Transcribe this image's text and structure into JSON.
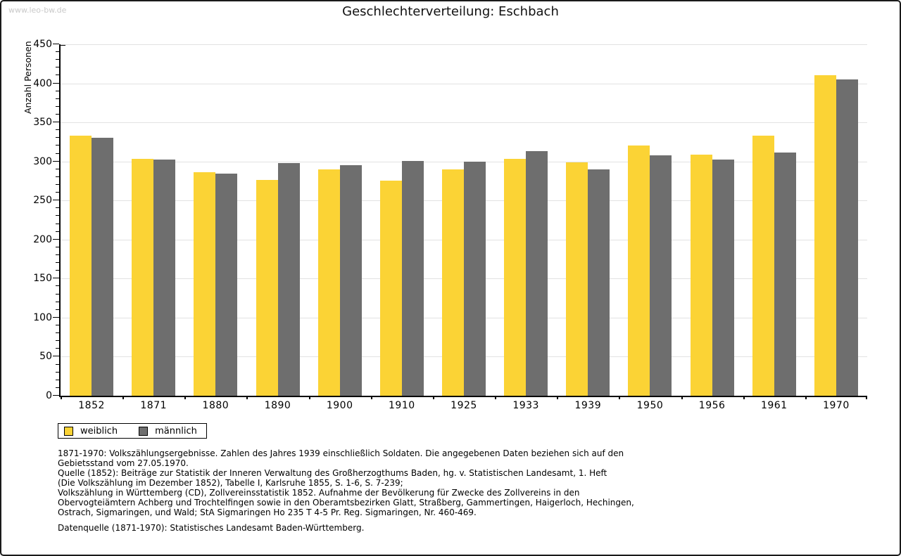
{
  "watermark": "www.leo-bw.de",
  "title": "Geschlechterverteilung: Eschbach",
  "chart_data": {
    "type": "bar",
    "title": "Geschlechterverteilung: Eschbach",
    "xlabel": "",
    "ylabel": "Anzahl Personen",
    "ylim": [
      0,
      450
    ],
    "ytick_step": 50,
    "ytick_minor_step": 10,
    "yticks": [
      0,
      50,
      100,
      150,
      200,
      250,
      300,
      350,
      400,
      450
    ],
    "grid": true,
    "gridline_color": "#e2e2e2",
    "legend_position": "bottom-left",
    "categories": [
      "1852",
      "1871",
      "1880",
      "1890",
      "1900",
      "1910",
      "1925",
      "1933",
      "1939",
      "1950",
      "1956",
      "1961",
      "1970"
    ],
    "series": [
      {
        "name": "weiblich",
        "color": "#FBD335",
        "values": [
          333,
          303,
          286,
          276,
          290,
          275,
          290,
          303,
          299,
          320,
          309,
          333,
          410
        ]
      },
      {
        "name": "männlich",
        "color": "#6E6E6E",
        "values": [
          330,
          302,
          284,
          298,
          295,
          301,
          300,
          313,
          290,
          308,
          302,
          311,
          405
        ]
      }
    ]
  },
  "footnotes": [
    "1871-1970: Volkszählungsergebnisse. Zahlen des Jahres 1939 einschließlich Soldaten. Die angegebenen Daten beziehen sich auf den",
    "Gebietsstand vom 27.05.1970.",
    "Quelle (1852): Beiträge zur Statistik der Inneren Verwaltung des Großherzogthums Baden, hg. v. Statistischen Landesamt, 1. Heft",
    "(Die Volkszählung im Dezember 1852), Tabelle I, Karlsruhe 1855, S. 1-6, S. 7-239;",
    "Volkszählung in Württemberg (CD), Zollvereinsstatistik 1852. Aufnahme der Bevölkerung für Zwecke des Zollvereins in den",
    "Obervogteiämtern Achberg und Trochtelfingen sowie in den Oberamtsbezirken Glatt, Straßberg, Gammertingen, Haigerloch, Hechingen,",
    "Ostrach, Sigmaringen, und Wald; StA Sigmaringen Ho 235 T 4-5 Pr. Reg. Sigmaringen, Nr. 460-469."
  ],
  "datasource": "Datenquelle (1871-1970): Statistisches Landesamt Baden-Württemberg."
}
